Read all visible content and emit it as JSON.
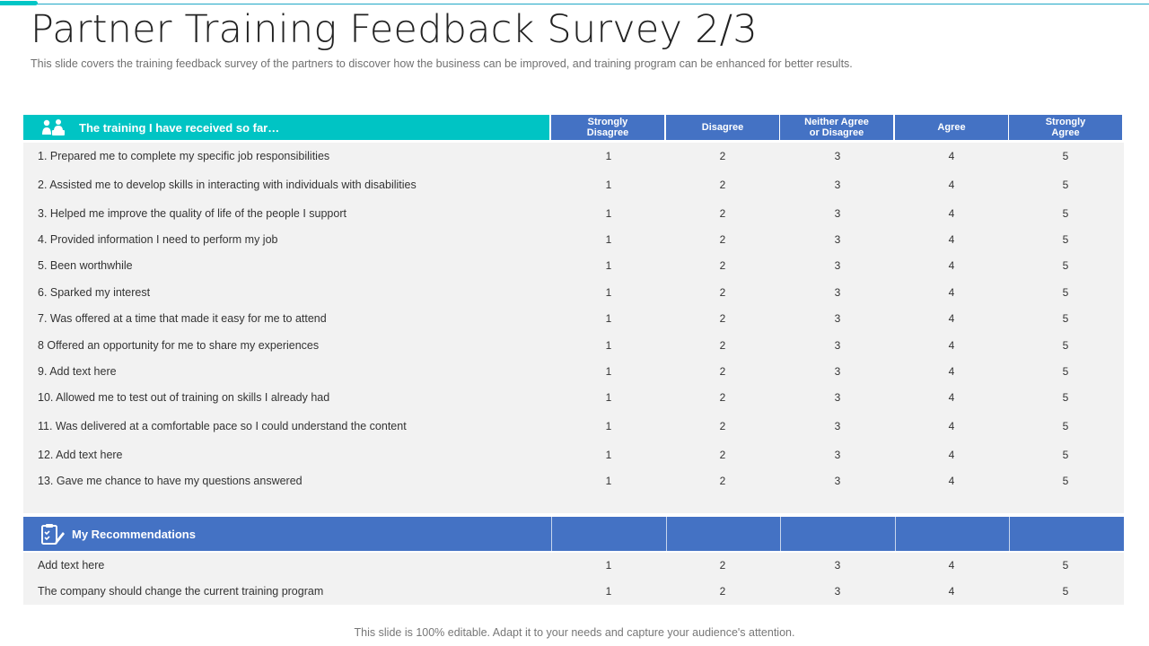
{
  "title": "Partner Training Feedback Survey 2/3",
  "subtitle": "This slide covers the training feedback survey of the partners to discover how the business can be improved, and training program can be enhanced for better results.",
  "footer": "This slide is 100% editable. Adapt it to your needs and capture your audience's attention.",
  "section1": {
    "heading": "The training I have received so far…",
    "icon": "group-users-icon",
    "columns": [
      {
        "line1": "Strongly",
        "line2": "Disagree"
      },
      {
        "line1": "Disagree",
        "line2": ""
      },
      {
        "line1": "Neither Agree",
        "line2": "or Disagree"
      },
      {
        "line1": "Agree",
        "line2": ""
      },
      {
        "line1": "Strongly",
        "line2": "Agree"
      }
    ],
    "rows": [
      {
        "q": "1. Prepared me to complete my specific job responsibilities",
        "v": [
          "1",
          "2",
          "3",
          "4",
          "5"
        ]
      },
      {
        "q": "2. Assisted me to develop skills in interacting with individuals with disabilities",
        "v": [
          "1",
          "2",
          "3",
          "4",
          "5"
        ]
      },
      {
        "q": "3. Helped me improve the quality of life of the people I support",
        "v": [
          "1",
          "2",
          "3",
          "4",
          "5"
        ]
      },
      {
        "q": "4. Provided information I need to perform my job",
        "v": [
          "1",
          "2",
          "3",
          "4",
          "5"
        ]
      },
      {
        "q": "5. Been worthwhile",
        "v": [
          "1",
          "2",
          "3",
          "4",
          "5"
        ]
      },
      {
        "q": "6. Sparked my interest",
        "v": [
          "1",
          "2",
          "3",
          "4",
          "5"
        ]
      },
      {
        "q": "7. Was offered at a time that made it easy for me to attend",
        "v": [
          "1",
          "2",
          "3",
          "4",
          "5"
        ]
      },
      {
        "q": "8 Offered an opportunity for me to share my experiences",
        "v": [
          "1",
          "2",
          "3",
          "4",
          "5"
        ]
      },
      {
        "q": "9. Add text here",
        "v": [
          "1",
          "2",
          "3",
          "4",
          "5"
        ]
      },
      {
        "q": "10. Allowed me to test out of training on skills I already had",
        "v": [
          "1",
          "2",
          "3",
          "4",
          "5"
        ]
      },
      {
        "q": "11. Was delivered at a comfortable pace so I could understand the content",
        "v": [
          "1",
          "2",
          "3",
          "4",
          "5"
        ]
      },
      {
        "q": "12. Add text here",
        "v": [
          "1",
          "2",
          "3",
          "4",
          "5"
        ]
      },
      {
        "q": "13. Gave me chance to have my questions answered",
        "v": [
          "1",
          "2",
          "3",
          "4",
          "5"
        ]
      }
    ]
  },
  "section2": {
    "heading": "My Recommendations",
    "icon": "clipboard-check-icon",
    "rows": [
      {
        "q": "Add text here",
        "v": [
          "1",
          "2",
          "3",
          "4",
          "5"
        ]
      },
      {
        "q": "The company should change the current training program",
        "v": [
          "1",
          "2",
          "3",
          "4",
          "5"
        ]
      }
    ]
  },
  "colors": {
    "teal": "#00c4c4",
    "blue": "#4472c4",
    "row_bg": "#f2f2f2"
  }
}
